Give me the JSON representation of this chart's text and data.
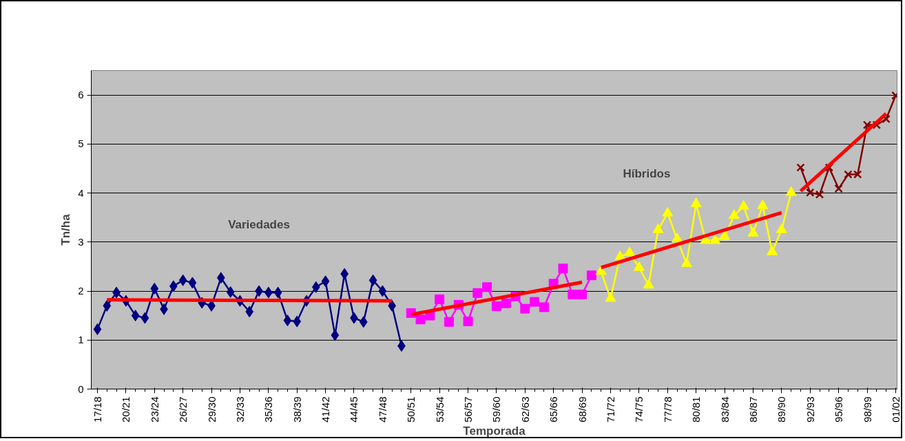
{
  "chart_data": {
    "type": "line",
    "xlabel": "Temporada",
    "ylabel": "Tn/ha",
    "categories": [
      "17/18",
      null,
      null,
      "20/21",
      null,
      null,
      "23/24",
      null,
      null,
      "26/27",
      null,
      null,
      "29/30",
      null,
      null,
      "32/33",
      null,
      null,
      "35/36",
      null,
      null,
      "38/39",
      null,
      null,
      "41/42",
      null,
      null,
      "44/45",
      null,
      null,
      "47/48",
      null,
      null,
      "50/51",
      null,
      null,
      "53/54",
      null,
      null,
      "56/57",
      null,
      null,
      "59/60",
      null,
      null,
      "62/63",
      null,
      null,
      "65/66",
      null,
      null,
      "68/69",
      null,
      null,
      "71/72",
      null,
      null,
      "74/75",
      null,
      null,
      "77/78",
      null,
      null,
      "80/81",
      null,
      null,
      "83/84",
      null,
      null,
      "86/87",
      null,
      null,
      "89/90",
      null,
      null,
      "92/93",
      null,
      null,
      "95/96",
      null,
      null,
      "98/99",
      null,
      null,
      "01/02"
    ],
    "series": [
      {
        "color": "#000080",
        "marker": "diamond",
        "values": [
          1.22,
          1.7,
          1.97,
          1.8,
          1.5,
          1.45,
          2.05,
          1.63,
          2.1,
          2.22,
          2.17,
          1.76,
          1.7,
          2.27,
          1.98,
          1.8,
          1.58,
          2.0,
          1.97,
          1.97,
          1.4,
          1.38,
          1.8,
          2.08,
          2.2,
          1.1,
          2.35,
          1.45,
          1.37,
          2.22,
          2.0,
          1.7,
          0.88,
          null,
          null,
          null,
          null,
          null,
          null,
          null,
          null,
          null,
          null,
          null,
          null,
          null,
          null,
          null,
          null,
          null,
          null,
          null,
          null,
          null,
          null,
          null,
          null,
          null,
          null,
          null,
          null,
          null,
          null,
          null,
          null,
          null,
          null,
          null,
          null,
          null,
          null,
          null,
          null,
          null,
          null,
          null,
          null,
          null,
          null,
          null,
          null,
          null,
          null,
          null,
          null
        ]
      },
      {
        "color": "#ff00ff",
        "marker": "square",
        "values": [
          null,
          null,
          null,
          null,
          null,
          null,
          null,
          null,
          null,
          null,
          null,
          null,
          null,
          null,
          null,
          null,
          null,
          null,
          null,
          null,
          null,
          null,
          null,
          null,
          null,
          null,
          null,
          null,
          null,
          null,
          null,
          null,
          null,
          1.55,
          1.42,
          1.5,
          1.83,
          1.37,
          1.72,
          1.38,
          1.96,
          2.08,
          1.69,
          1.75,
          1.89,
          1.64,
          1.78,
          1.67,
          2.15,
          2.46,
          1.93,
          1.93,
          2.32,
          null,
          null,
          null,
          null,
          null,
          null,
          null,
          null,
          null,
          null,
          null,
          null,
          null,
          null,
          null,
          null,
          null,
          null,
          null,
          null,
          null,
          null,
          null,
          null,
          null,
          null,
          null,
          null,
          null,
          null,
          null,
          null
        ]
      },
      {
        "color": "#ffff00",
        "marker": "triangle",
        "values": [
          null,
          null,
          null,
          null,
          null,
          null,
          null,
          null,
          null,
          null,
          null,
          null,
          null,
          null,
          null,
          null,
          null,
          null,
          null,
          null,
          null,
          null,
          null,
          null,
          null,
          null,
          null,
          null,
          null,
          null,
          null,
          null,
          null,
          null,
          null,
          null,
          null,
          null,
          null,
          null,
          null,
          null,
          null,
          null,
          null,
          null,
          null,
          null,
          null,
          null,
          null,
          null,
          null,
          2.4,
          1.85,
          2.7,
          2.78,
          2.48,
          2.12,
          3.25,
          3.59,
          3.06,
          2.56,
          3.78,
          3.03,
          3.03,
          3.11,
          3.54,
          3.73,
          3.18,
          3.74,
          2.8,
          3.25,
          4.01,
          null,
          null,
          null,
          null,
          null,
          null,
          null,
          null,
          null,
          null,
          null
        ]
      },
      {
        "color": "#800000",
        "marker": "cross",
        "values": [
          null,
          null,
          null,
          null,
          null,
          null,
          null,
          null,
          null,
          null,
          null,
          null,
          null,
          null,
          null,
          null,
          null,
          null,
          null,
          null,
          null,
          null,
          null,
          null,
          null,
          null,
          null,
          null,
          null,
          null,
          null,
          null,
          null,
          null,
          null,
          null,
          null,
          null,
          null,
          null,
          null,
          null,
          null,
          null,
          null,
          null,
          null,
          null,
          null,
          null,
          null,
          null,
          null,
          null,
          null,
          null,
          null,
          null,
          null,
          null,
          null,
          null,
          null,
          null,
          null,
          null,
          null,
          null,
          null,
          null,
          null,
          null,
          null,
          null,
          4.52,
          4.01,
          3.97,
          4.52,
          4.09,
          4.38,
          4.38,
          5.39,
          5.39,
          5.51,
          5.99
        ]
      },
      {
        "color": "#ff0000",
        "marker": "none",
        "values": [
          null,
          1.82,
          null,
          null,
          null,
          null,
          null,
          null,
          null,
          null,
          null,
          null,
          null,
          null,
          null,
          null,
          null,
          null,
          null,
          null,
          null,
          null,
          null,
          null,
          null,
          null,
          null,
          null,
          null,
          null,
          null,
          1.8,
          null,
          null,
          null,
          null,
          null,
          null,
          null,
          null,
          null,
          null,
          null,
          null,
          null,
          null,
          null,
          null,
          null,
          null,
          null,
          null,
          null,
          null,
          null,
          null,
          null,
          null,
          null,
          null,
          null,
          null,
          null,
          null,
          null,
          null,
          null,
          null,
          null,
          null,
          null,
          null,
          null,
          null,
          null,
          null,
          null,
          null,
          null,
          null,
          null,
          null,
          null,
          null,
          null
        ]
      },
      {
        "color": "#ff0000",
        "marker": "none",
        "values": [
          null,
          null,
          null,
          null,
          null,
          null,
          null,
          null,
          null,
          null,
          null,
          null,
          null,
          null,
          null,
          null,
          null,
          null,
          null,
          null,
          null,
          null,
          null,
          null,
          null,
          null,
          null,
          null,
          null,
          null,
          null,
          null,
          null,
          1.52,
          null,
          null,
          null,
          null,
          null,
          null,
          null,
          null,
          null,
          null,
          null,
          null,
          null,
          null,
          null,
          null,
          null,
          2.18,
          null,
          null,
          null,
          null,
          null,
          null,
          null,
          null,
          null,
          null,
          null,
          null,
          null,
          null,
          null,
          null,
          null,
          null,
          null,
          null,
          null,
          null,
          null,
          null,
          null,
          null,
          null,
          null,
          null,
          null,
          null,
          null,
          null
        ]
      },
      {
        "color": "#ff0000",
        "marker": "none",
        "values": [
          null,
          null,
          null,
          null,
          null,
          null,
          null,
          null,
          null,
          null,
          null,
          null,
          null,
          null,
          null,
          null,
          null,
          null,
          null,
          null,
          null,
          null,
          null,
          null,
          null,
          null,
          null,
          null,
          null,
          null,
          null,
          null,
          null,
          null,
          null,
          null,
          null,
          null,
          null,
          null,
          null,
          null,
          null,
          null,
          null,
          null,
          null,
          null,
          null,
          null,
          null,
          null,
          null,
          2.48,
          null,
          null,
          null,
          null,
          null,
          null,
          null,
          null,
          null,
          null,
          null,
          null,
          null,
          null,
          null,
          null,
          null,
          null,
          3.6,
          null,
          null,
          null,
          null,
          null,
          null,
          null,
          null,
          null,
          null,
          null,
          null
        ]
      },
      {
        "color": "#ff0000",
        "marker": "none",
        "values": [
          null,
          null,
          null,
          null,
          null,
          null,
          null,
          null,
          null,
          null,
          null,
          null,
          null,
          null,
          null,
          null,
          null,
          null,
          null,
          null,
          null,
          null,
          null,
          null,
          null,
          null,
          null,
          null,
          null,
          null,
          null,
          null,
          null,
          null,
          null,
          null,
          null,
          null,
          null,
          null,
          null,
          null,
          null,
          null,
          null,
          null,
          null,
          null,
          null,
          null,
          null,
          null,
          null,
          null,
          null,
          null,
          null,
          null,
          null,
          null,
          null,
          null,
          null,
          null,
          null,
          null,
          null,
          null,
          null,
          null,
          null,
          null,
          null,
          null,
          4.04,
          null,
          null,
          null,
          null,
          null,
          null,
          null,
          null,
          5.62,
          null
        ]
      }
    ],
    "ylim": [
      0,
      6.5
    ],
    "yticks": [
      0,
      1,
      2,
      3,
      4,
      5,
      6
    ],
    "grid": "y",
    "annotations": [
      "Variedades",
      "Híbridos"
    ]
  }
}
